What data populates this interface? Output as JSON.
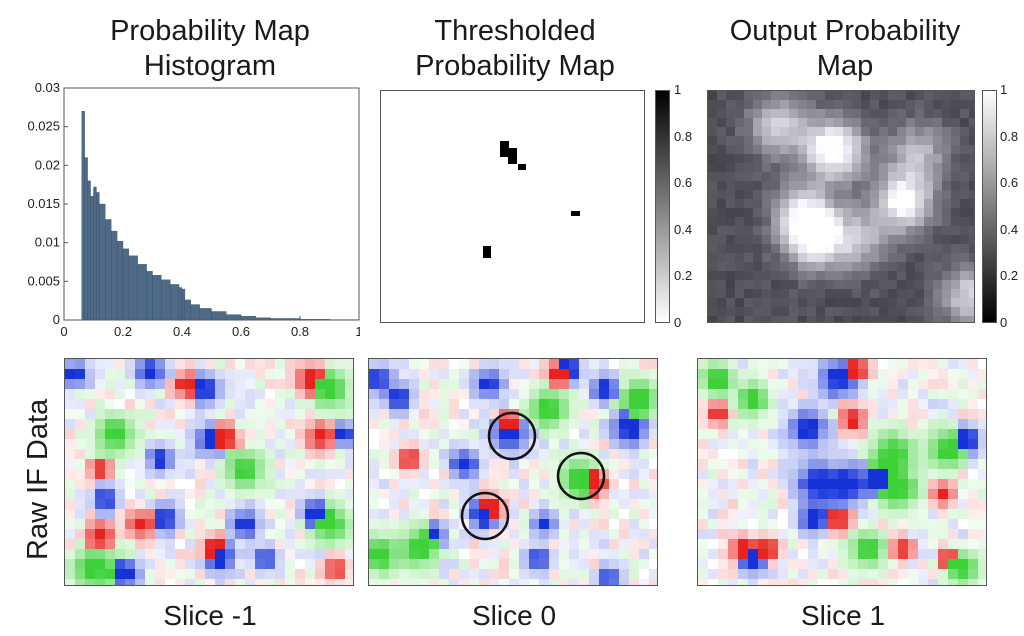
{
  "titles": {
    "histogram": [
      "Probability Map",
      "Histogram"
    ],
    "thresholded": [
      "Thresholded",
      "Probability Map"
    ],
    "output": [
      "Output Probability",
      "Map"
    ]
  },
  "row_label": "Raw IF Data",
  "slice_labels": [
    "Slice -1",
    "Slice 0",
    "Slice 1"
  ],
  "chart_data": [
    {
      "type": "bar",
      "title": "Probability Map Histogram",
      "xlabel": "",
      "ylabel": "",
      "xlim": [
        0,
        1
      ],
      "ylim": [
        0,
        0.03
      ],
      "x_ticks": [
        "0",
        "0.2",
        "0.4",
        "0.6",
        "0.8",
        "1"
      ],
      "y_ticks": [
        "0",
        "0.005",
        "0.01",
        "0.015",
        "0.02",
        "0.025",
        "0.03"
      ],
      "color": "#4e6a86",
      "x": [
        0.06,
        0.07,
        0.08,
        0.09,
        0.1,
        0.11,
        0.12,
        0.14,
        0.16,
        0.18,
        0.2,
        0.22,
        0.25,
        0.28,
        0.3,
        0.33,
        0.36,
        0.39,
        0.4,
        0.41,
        0.43,
        0.46,
        0.5,
        0.55,
        0.6,
        0.65,
        0.7,
        0.8,
        0.9,
        1.0
      ],
      "values": [
        0.027,
        0.021,
        0.018,
        0.016,
        0.0172,
        0.0165,
        0.015,
        0.013,
        0.0115,
        0.0102,
        0.0092,
        0.0083,
        0.0072,
        0.0063,
        0.0058,
        0.0052,
        0.0046,
        0.0042,
        0.004,
        0.0026,
        0.002,
        0.0015,
        0.0011,
        0.0007,
        0.0005,
        0.0003,
        0.0002,
        0.0001,
        5e-05,
        2e-05
      ]
    },
    {
      "type": "heatmap",
      "title": "Thresholded Probability Map",
      "colorbar_ticks": [
        "1",
        "0.8",
        "0.6",
        "0.4",
        "0.2",
        "0"
      ],
      "colormap": "gray-reversed (0 white, 1 black)"
    },
    {
      "type": "heatmap",
      "title": "Output Probability Map",
      "colorbar_ticks": [
        "1",
        "0.8",
        "0.6",
        "0.4",
        "0.2",
        "0"
      ],
      "colormap": "gray (0 black, 1 white)"
    }
  ],
  "colors": {
    "red": "#e8231f",
    "green": "#3ed13a",
    "blue": "#1531d8",
    "circle": "#111111"
  }
}
